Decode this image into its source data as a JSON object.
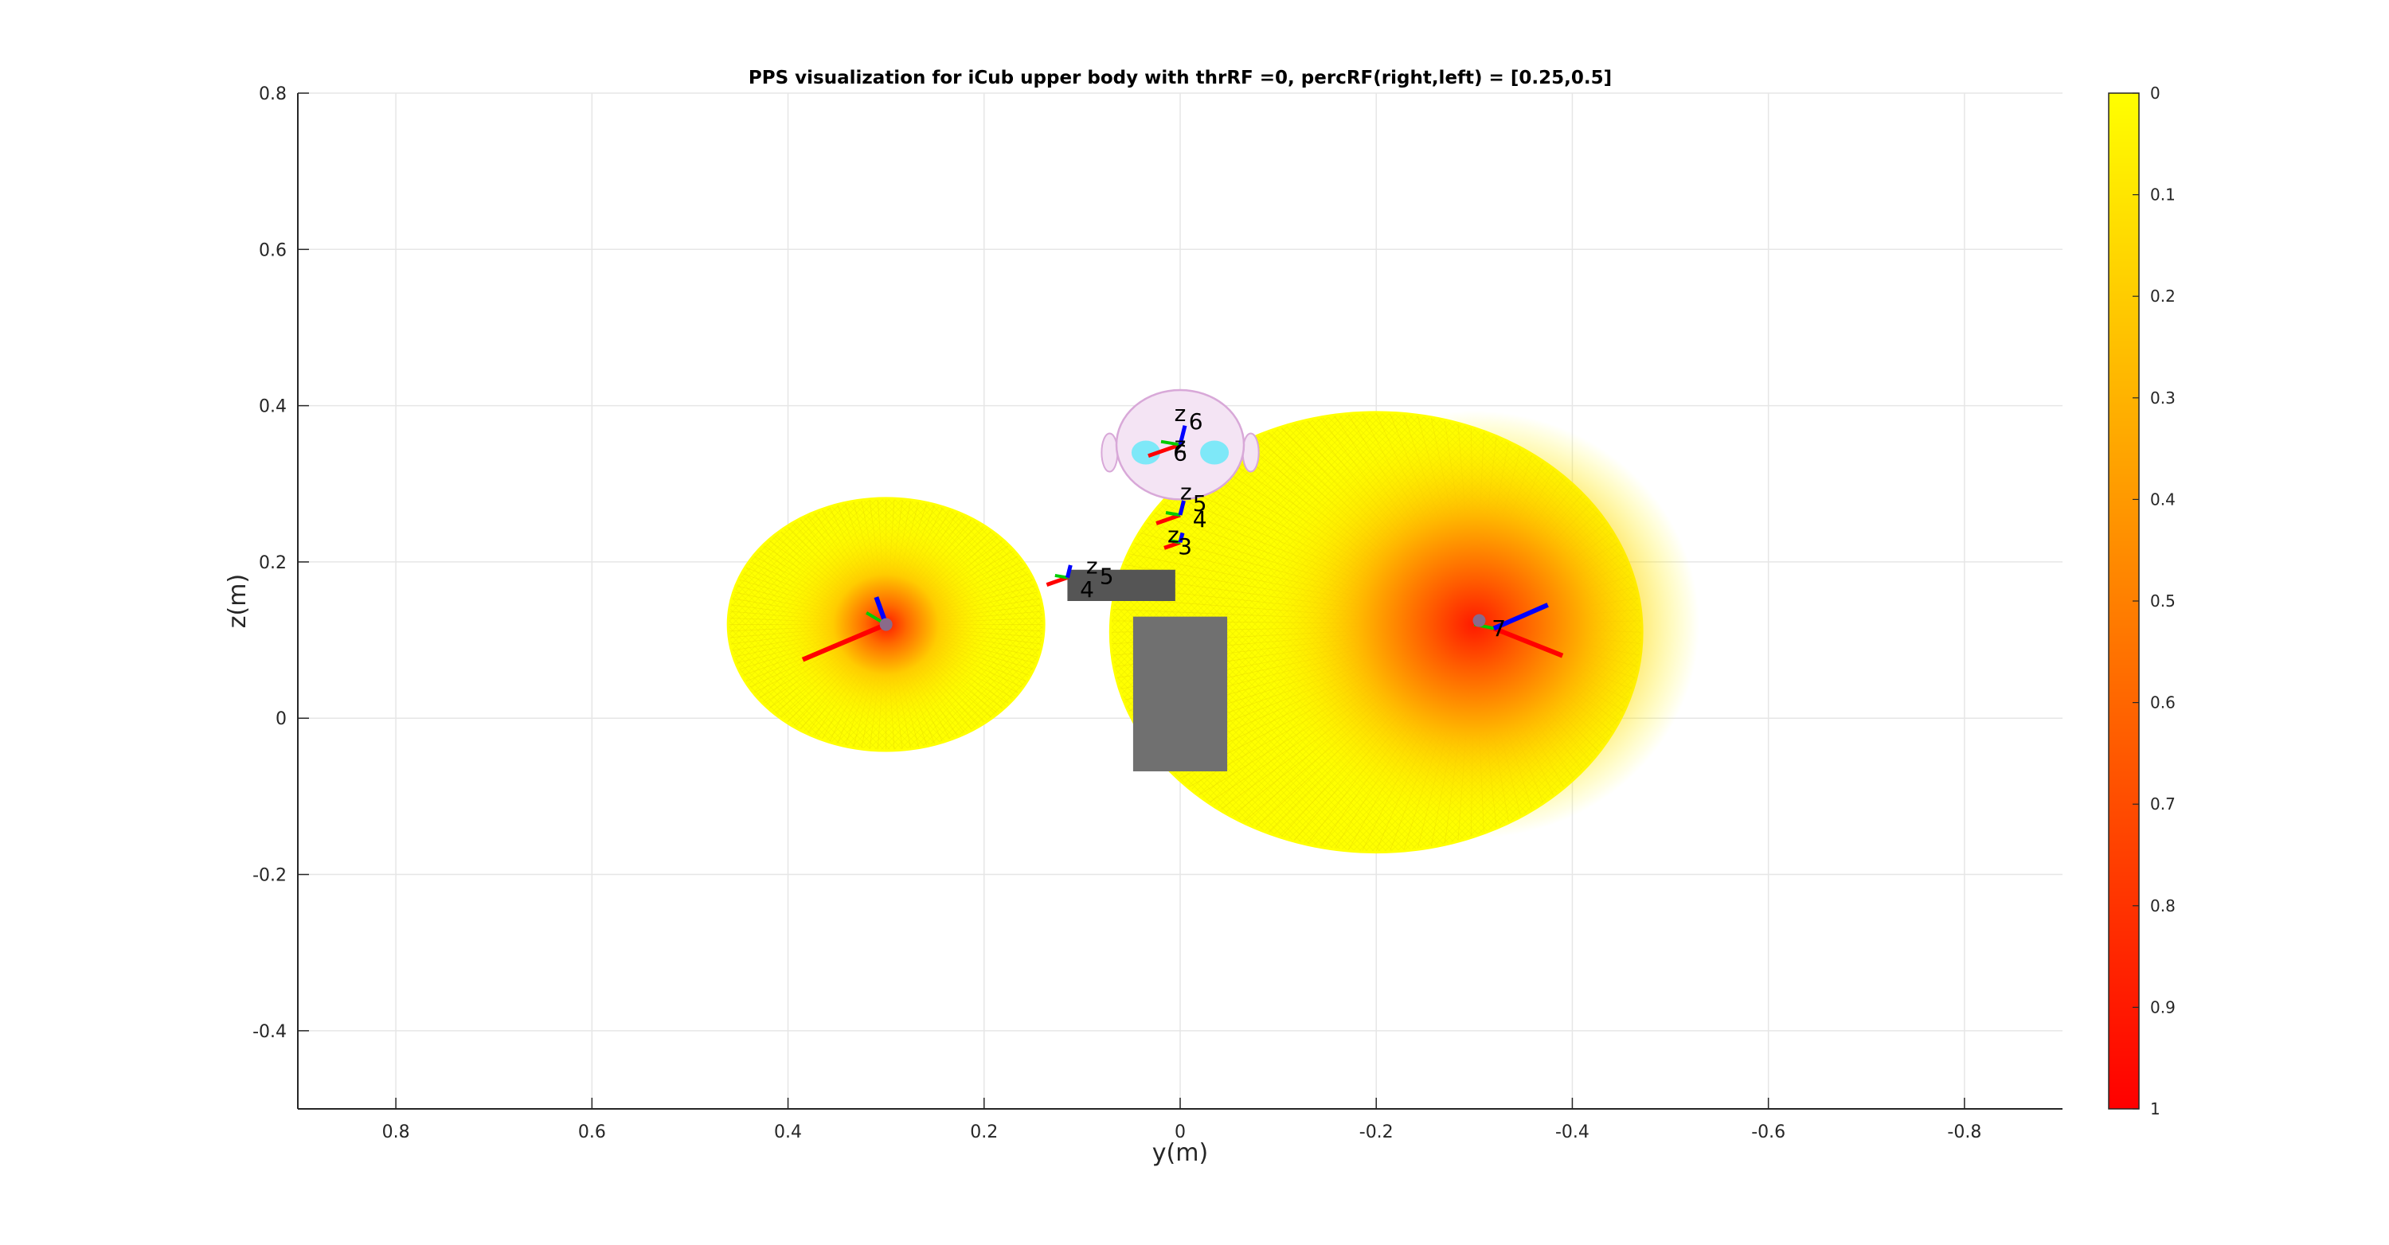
{
  "chart_data": {
    "type": "surface",
    "title": "PPS visualization for iCub upper body with thrRF =0, percRF(right,left) = [0.25,0.5]",
    "xlabel": "y(m)",
    "ylabel": "z(m)",
    "xlim": [
      0.9,
      -0.9
    ],
    "ylim": [
      -0.5,
      0.8
    ],
    "x_reversed": true,
    "xticks": [
      0.8,
      0.6,
      0.4,
      0.2,
      0,
      -0.2,
      -0.4,
      -0.6,
      -0.8
    ],
    "xtick_labels": [
      "0.8",
      "0.6",
      "0.4",
      "0.2",
      "0",
      "-0.2",
      "-0.4",
      "-0.6",
      "-0.8"
    ],
    "yticks": [
      0.8,
      0.6,
      0.4,
      0.2,
      0,
      -0.2,
      -0.4
    ],
    "ytick_labels": [
      "0.8",
      "0.6",
      "0.4",
      "0.2",
      "0",
      "-0.2",
      "-0.4"
    ],
    "grid": true,
    "colorbar": {
      "colormap": "autumn-reversed",
      "range": [
        0,
        1
      ],
      "reversed": true,
      "ticks": [
        0,
        0.1,
        0.2,
        0.3,
        0.4,
        0.5,
        0.6,
        0.7,
        0.8,
        0.9,
        1
      ],
      "tick_labels": [
        "0",
        "0.1",
        "0.2",
        "0.3",
        "0.4",
        "0.5",
        "0.6",
        "0.7",
        "0.8",
        "0.9",
        "1"
      ],
      "color_low": "#ffff00",
      "color_high": "#ff0000"
    },
    "pps_regions": [
      {
        "side": "left",
        "center_y": 0.3,
        "center_z": 0.12,
        "radius_y": 0.16,
        "radius_z": 0.16,
        "hot_y": 0.3,
        "hot_z": 0.12
      },
      {
        "side": "right",
        "center_y": -0.2,
        "center_z": 0.11,
        "radius_y": 0.27,
        "radius_z": 0.28,
        "hot_y": -0.3,
        "hot_z": 0.12
      }
    ],
    "frame_labels": [
      {
        "text": "z",
        "y": 0.0,
        "z": 0.38
      },
      {
        "text": "6",
        "y": -0.016,
        "z": 0.37
      },
      {
        "text": "z",
        "y": 0.0,
        "z": 0.34
      },
      {
        "text": "6",
        "y": 0.0,
        "z": 0.33
      },
      {
        "text": "z",
        "y": -0.006,
        "z": 0.28
      },
      {
        "text": "5",
        "y": -0.02,
        "z": 0.265
      },
      {
        "text": "4",
        "y": -0.02,
        "z": 0.245
      },
      {
        "text": "z",
        "y": 0.007,
        "z": 0.225
      },
      {
        "text": "3",
        "y": -0.005,
        "z": 0.21
      },
      {
        "text": "z",
        "y": 0.09,
        "z": 0.185
      },
      {
        "text": "5",
        "y": 0.075,
        "z": 0.172
      },
      {
        "text": "4",
        "y": 0.095,
        "z": 0.155
      },
      {
        "text": "7",
        "y": -0.325,
        "z": 0.105
      }
    ],
    "colors": {
      "head_fill": "#f4e4f4",
      "head_mesh": "#d8a8d8",
      "eye": "#7ee8f8",
      "torso": "#707070",
      "arm": "#555555",
      "axis_x": "#ff0000",
      "axis_y": "#00cc00",
      "axis_z": "#0000ff"
    }
  }
}
